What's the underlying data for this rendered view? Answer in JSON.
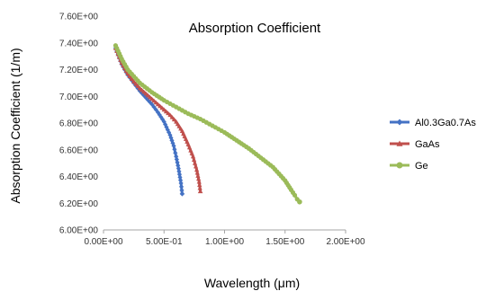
{
  "chart_data": {
    "type": "line",
    "title": "Absorption Coefficient",
    "xlabel": "Wavelength (μm)",
    "ylabel": "Absorption Coefficient (1/m)",
    "xlim": [
      0,
      2.0
    ],
    "ylim": [
      6.0,
      7.6
    ],
    "x_ticks": [
      "0.00E+00",
      "5.00E-01",
      "1.00E+00",
      "1.50E+00",
      "2.00E+00"
    ],
    "y_ticks": [
      "6.00E+00",
      "6.20E+00",
      "6.40E+00",
      "6.60E+00",
      "6.80E+00",
      "7.00E+00",
      "7.20E+00",
      "7.40E+00",
      "7.60E+00"
    ],
    "grid": false,
    "legend_position": "right",
    "series": [
      {
        "name": "Al0.3Ga0.7As",
        "color": "#4472c4",
        "marker": "diamond",
        "x": [
          0.1,
          0.15,
          0.2,
          0.25,
          0.3,
          0.35,
          0.4,
          0.45,
          0.5,
          0.55,
          0.58,
          0.6,
          0.62,
          0.64,
          0.65
        ],
        "y": [
          7.36,
          7.24,
          7.16,
          7.1,
          7.04,
          6.99,
          6.94,
          6.88,
          6.81,
          6.71,
          6.63,
          6.55,
          6.46,
          6.35,
          6.27
        ]
      },
      {
        "name": "GaAs",
        "color": "#c0504d",
        "marker": "triangle",
        "x": [
          0.1,
          0.15,
          0.2,
          0.25,
          0.3,
          0.35,
          0.4,
          0.45,
          0.5,
          0.55,
          0.6,
          0.65,
          0.7,
          0.74,
          0.77,
          0.79,
          0.8
        ],
        "y": [
          7.36,
          7.25,
          7.17,
          7.11,
          7.06,
          7.02,
          6.98,
          6.94,
          6.9,
          6.86,
          6.81,
          6.74,
          6.64,
          6.55,
          6.45,
          6.36,
          6.29
        ]
      },
      {
        "name": "Ge",
        "color": "#9bbb59",
        "marker": "circle",
        "x": [
          0.1,
          0.15,
          0.2,
          0.3,
          0.4,
          0.5,
          0.6,
          0.7,
          0.8,
          0.9,
          1.0,
          1.1,
          1.2,
          1.3,
          1.4,
          1.5,
          1.55,
          1.58,
          1.6,
          1.62
        ],
        "y": [
          7.38,
          7.28,
          7.2,
          7.1,
          7.03,
          6.97,
          6.92,
          6.87,
          6.83,
          6.78,
          6.73,
          6.67,
          6.61,
          6.54,
          6.47,
          6.37,
          6.3,
          6.26,
          6.23,
          6.21
        ]
      }
    ]
  }
}
